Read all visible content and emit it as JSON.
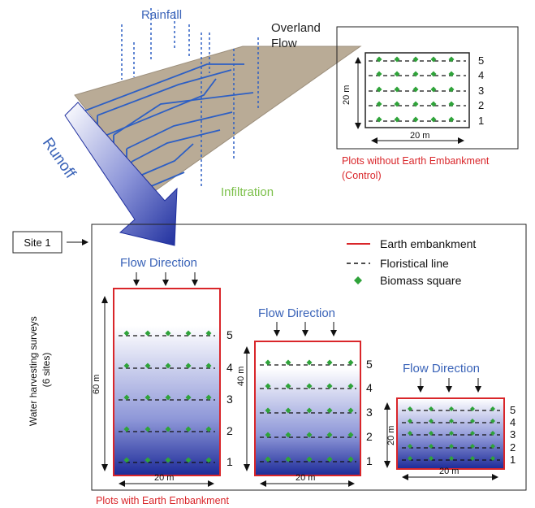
{
  "schematic": {
    "rainfall_label": "Rainfall",
    "overland_flow_lines": [
      "Overland",
      "Flow"
    ],
    "runoff_label": "Runoff",
    "infiltration_label": "Infiltration"
  },
  "control_plot": {
    "side_label": "20 m",
    "bottom_label": "20 m",
    "line_numbers": [
      "5",
      "4",
      "3",
      "2",
      "1"
    ],
    "caption_lines": [
      "Plots without Earth Embankment",
      "(Control)"
    ]
  },
  "site_label": "Site 1",
  "surveys_label_lines": [
    "Water harvesting surveys",
    "(6 sites)"
  ],
  "legend": {
    "embankment": "Earth embankment",
    "floristical_line": "Floristical line",
    "biomass_square": "Biomass square"
  },
  "flow_direction_label": "Flow Direction",
  "plots": [
    {
      "side_label": "60 m",
      "bottom_label": "20 m",
      "line_numbers": [
        "5",
        "4",
        "3",
        "2",
        "1"
      ]
    },
    {
      "side_label": "40 m",
      "bottom_label": "20 m",
      "line_numbers": [
        "5",
        "4",
        "3",
        "2",
        "1"
      ]
    },
    {
      "side_label": "20 m",
      "bottom_label": "20 m",
      "line_numbers": [
        "5",
        "4",
        "3",
        "2",
        "1"
      ]
    }
  ],
  "bottom_caption": "Plots with Earth Embankment",
  "colors": {
    "embankment_red": "#d9262a",
    "rain_blue": "#2d5fc4",
    "heading_blue": "#3a63b8",
    "biomass_green": "#2fa33a",
    "infiltration_green": "#7cc04a",
    "water_blue": "#1f2f9e",
    "surface_tan": "#b9ab96"
  }
}
